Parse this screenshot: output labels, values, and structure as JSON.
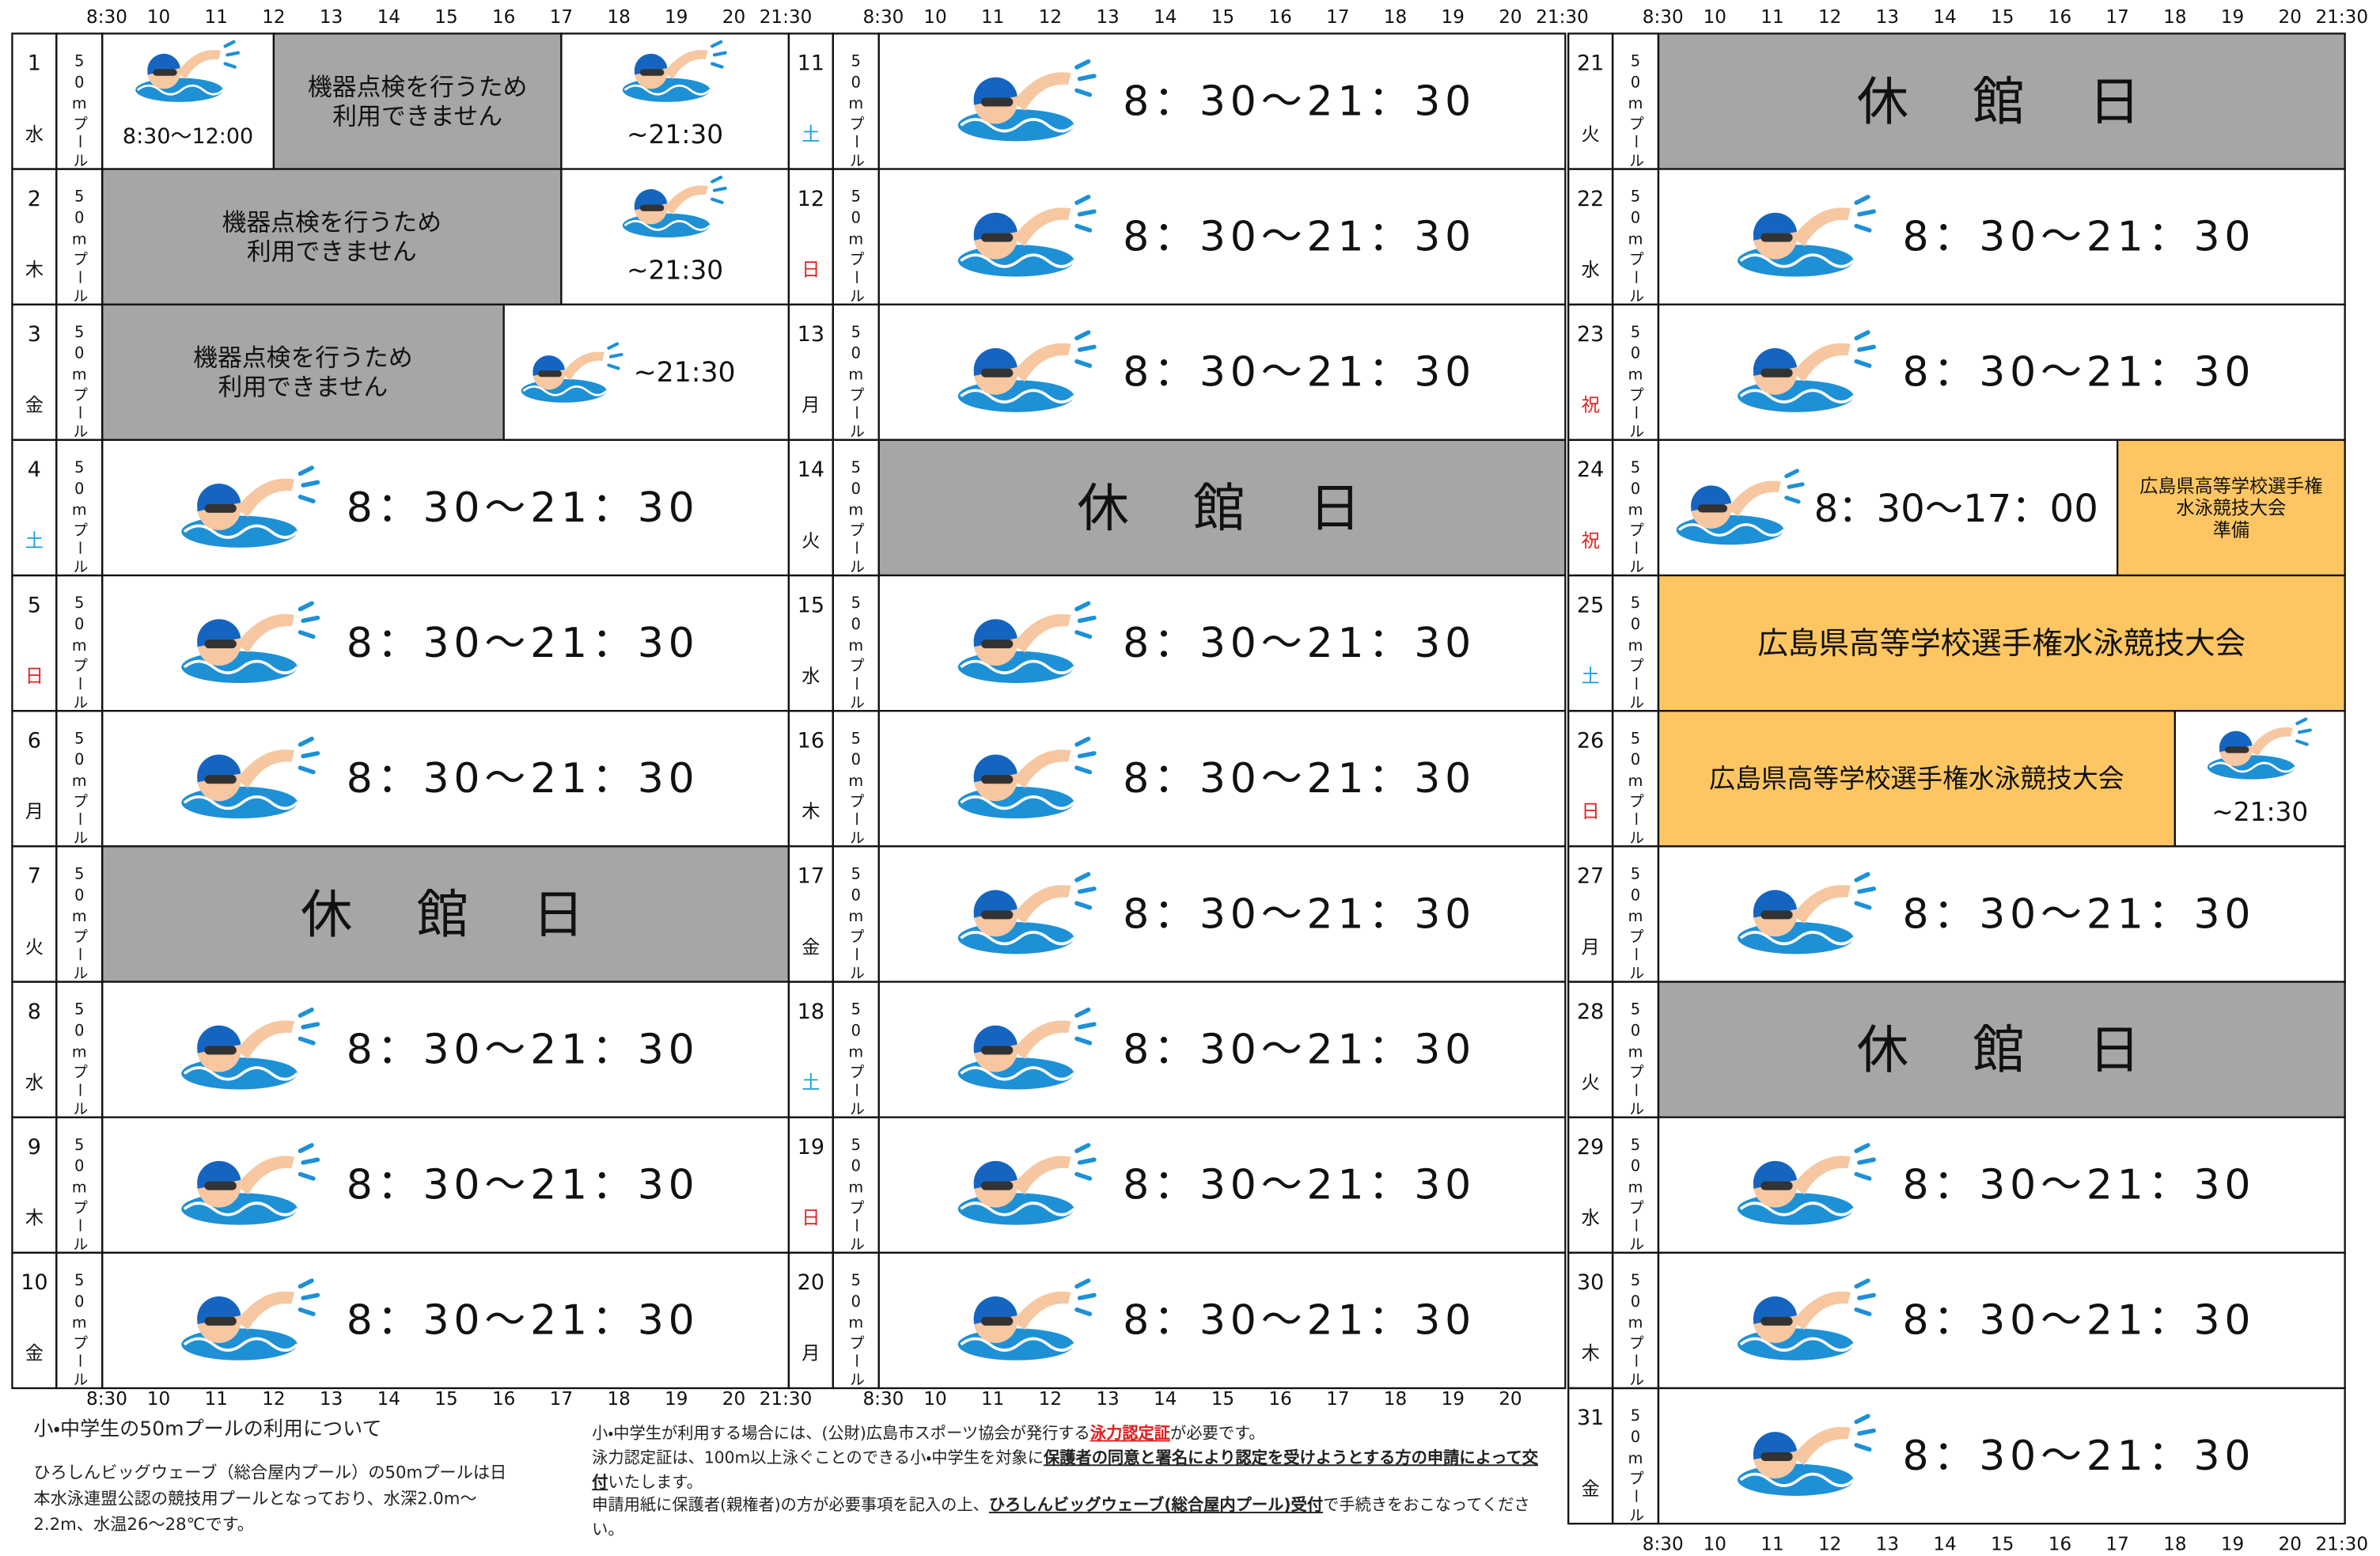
{
  "time_labels": [
    "8:30",
    "10",
    "11",
    "12",
    "13",
    "14",
    "15",
    "16",
    "17",
    "18",
    "19",
    "20",
    "21:30"
  ],
  "pool_label": "50mプール",
  "colors": {
    "open": "#ffffff",
    "closed": "#a6a6a6",
    "event": "#fdc662"
  },
  "days": [
    {
      "day": "1",
      "weekday": "水",
      "segments": [
        {
          "kind": "open",
          "start": 8.5,
          "end": 12,
          "label": "8:30～12:00"
        },
        {
          "kind": "closed",
          "start": 12,
          "end": 17,
          "lines": [
            "機器点検を行うため",
            "利用できません"
          ]
        },
        {
          "kind": "open",
          "start": 17,
          "end": 21.5,
          "label": "~21:30"
        }
      ]
    },
    {
      "day": "2",
      "weekday": "木",
      "segments": [
        {
          "kind": "closed",
          "start": 8.5,
          "end": 17,
          "lines": [
            "機器点検を行うため",
            "利用できません"
          ]
        },
        {
          "kind": "open",
          "start": 17,
          "end": 21.5,
          "label": "~21:30"
        }
      ]
    },
    {
      "day": "3",
      "weekday": "金",
      "segments": [
        {
          "kind": "closed",
          "start": 8.5,
          "end": 16,
          "lines": [
            "機器点検を行うため",
            "利用できません"
          ]
        },
        {
          "kind": "open",
          "start": 16,
          "end": 21.5,
          "label": "~21:30"
        }
      ]
    },
    {
      "day": "4",
      "weekday": "土",
      "color": "#1aa0d8",
      "segments": [
        {
          "kind": "open",
          "start": 8.5,
          "end": 21.5,
          "label": "8：30～21：30"
        }
      ]
    },
    {
      "day": "5",
      "weekday": "日",
      "color": "#e02020",
      "segments": [
        {
          "kind": "open",
          "start": 8.5,
          "end": 21.5,
          "label": "8：30～21：30"
        }
      ]
    },
    {
      "day": "6",
      "weekday": "月",
      "segments": [
        {
          "kind": "open",
          "start": 8.5,
          "end": 21.5,
          "label": "8：30～21：30"
        }
      ]
    },
    {
      "day": "7",
      "weekday": "火",
      "segments": [
        {
          "kind": "closed",
          "start": 8.5,
          "end": 21.5,
          "lines": [
            "休　館　日"
          ]
        }
      ]
    },
    {
      "day": "8",
      "weekday": "水",
      "segments": [
        {
          "kind": "open",
          "start": 8.5,
          "end": 21.5,
          "label": "8：30～21：30"
        }
      ]
    },
    {
      "day": "9",
      "weekday": "木",
      "segments": [
        {
          "kind": "open",
          "start": 8.5,
          "end": 21.5,
          "label": "8：30～21：30"
        }
      ]
    },
    {
      "day": "10",
      "weekday": "金",
      "segments": [
        {
          "kind": "open",
          "start": 8.5,
          "end": 21.5,
          "label": "8：30～21：30"
        }
      ]
    },
    {
      "day": "11",
      "weekday": "土",
      "color": "#1aa0d8",
      "segments": [
        {
          "kind": "open",
          "start": 8.5,
          "end": 21.5,
          "label": "8：30～21：30"
        }
      ]
    },
    {
      "day": "12",
      "weekday": "日",
      "color": "#e02020",
      "segments": [
        {
          "kind": "open",
          "start": 8.5,
          "end": 21.5,
          "label": "8：30～21：30"
        }
      ]
    },
    {
      "day": "13",
      "weekday": "月",
      "segments": [
        {
          "kind": "open",
          "start": 8.5,
          "end": 21.5,
          "label": "8：30～21：30"
        }
      ]
    },
    {
      "day": "14",
      "weekday": "火",
      "segments": [
        {
          "kind": "closed",
          "start": 8.5,
          "end": 21.5,
          "lines": [
            "休　館　日"
          ]
        }
      ]
    },
    {
      "day": "15",
      "weekday": "水",
      "segments": [
        {
          "kind": "open",
          "start": 8.5,
          "end": 21.5,
          "label": "8：30～21：30"
        }
      ]
    },
    {
      "day": "16",
      "weekday": "木",
      "segments": [
        {
          "kind": "open",
          "start": 8.5,
          "end": 21.5,
          "label": "8：30～21：30"
        }
      ]
    },
    {
      "day": "17",
      "weekday": "金",
      "segments": [
        {
          "kind": "open",
          "start": 8.5,
          "end": 21.5,
          "label": "8：30～21：30"
        }
      ]
    },
    {
      "day": "18",
      "weekday": "土",
      "color": "#1aa0d8",
      "segments": [
        {
          "kind": "open",
          "start": 8.5,
          "end": 21.5,
          "label": "8：30～21：30"
        }
      ]
    },
    {
      "day": "19",
      "weekday": "日",
      "color": "#e02020",
      "segments": [
        {
          "kind": "open",
          "start": 8.5,
          "end": 21.5,
          "label": "8：30～21：30"
        }
      ]
    },
    {
      "day": "20",
      "weekday": "月",
      "segments": [
        {
          "kind": "open",
          "start": 8.5,
          "end": 21.5,
          "label": "8：30～21：30"
        }
      ]
    },
    {
      "day": "21",
      "weekday": "火",
      "segments": [
        {
          "kind": "closed",
          "start": 8.5,
          "end": 21.5,
          "lines": [
            "休　館　日"
          ]
        }
      ]
    },
    {
      "day": "22",
      "weekday": "水",
      "segments": [
        {
          "kind": "open",
          "start": 8.5,
          "end": 21.5,
          "label": "8：30～21：30"
        }
      ]
    },
    {
      "day": "23",
      "weekday": "祝",
      "color": "#e02020",
      "segments": [
        {
          "kind": "open",
          "start": 8.5,
          "end": 21.5,
          "label": "8：30～21：30"
        }
      ]
    },
    {
      "day": "24",
      "weekday": "祝",
      "color": "#e02020",
      "segments": [
        {
          "kind": "open",
          "start": 8.5,
          "end": 17,
          "label": "8：30～17：00"
        },
        {
          "kind": "event",
          "start": 17,
          "end": 21.5,
          "lines": [
            "広島県高等学校選手権",
            "水泳競技大会",
            "準備"
          ]
        }
      ]
    },
    {
      "day": "25",
      "weekday": "土",
      "color": "#1aa0d8",
      "segments": [
        {
          "kind": "event",
          "start": 8.5,
          "end": 21.5,
          "lines": [
            "広島県高等学校選手権水泳競技大会"
          ]
        }
      ]
    },
    {
      "day": "26",
      "weekday": "日",
      "color": "#e02020",
      "segments": [
        {
          "kind": "event",
          "start": 8.5,
          "end": 18,
          "lines": [
            "広島県高等学校選手権水泳競技大会"
          ]
        },
        {
          "kind": "open",
          "start": 18,
          "end": 21.5,
          "label": "~21:30"
        }
      ]
    },
    {
      "day": "27",
      "weekday": "月",
      "segments": [
        {
          "kind": "open",
          "start": 8.5,
          "end": 21.5,
          "label": "8：30～21：30"
        }
      ]
    },
    {
      "day": "28",
      "weekday": "火",
      "segments": [
        {
          "kind": "closed",
          "start": 8.5,
          "end": 21.5,
          "lines": [
            "休　館　日"
          ]
        }
      ]
    },
    {
      "day": "29",
      "weekday": "水",
      "segments": [
        {
          "kind": "open",
          "start": 8.5,
          "end": 21.5,
          "label": "8：30～21：30"
        }
      ]
    },
    {
      "day": "30",
      "weekday": "木",
      "segments": [
        {
          "kind": "open",
          "start": 8.5,
          "end": 21.5,
          "label": "8：30～21：30"
        }
      ]
    },
    {
      "day": "31",
      "weekday": "金",
      "segments": [
        {
          "kind": "open",
          "start": 8.5,
          "end": 21.5,
          "label": "8：30～21：30"
        }
      ]
    }
  ],
  "notes": {
    "title": "小・中学生の50mプールの利用について",
    "description": "ひろしんビッグウェーブ（総合屋内プール）の50mプールは日本水泳連盟公認の競技用プールとなっており、水深2.0m～2.2m、水温26～28℃です。",
    "paragraphs": [
      [
        {
          "text": "小・中学生が利用する場合には、(公財)広島市スポーツ協会が発行する"
        },
        {
          "text": "泳力認定証",
          "style": "red-underline"
        },
        {
          "text": "が必要です。"
        }
      ],
      [
        {
          "text": "泳力認定証は、100m以上泳ぐことのできる小・中学生を対象に"
        },
        {
          "text": "保護者の同意と署名により認定を受けようとする方の申請によって交付",
          "style": "underline"
        },
        {
          "text": "いたします。"
        }
      ],
      [
        {
          "text": "申請用紙に保護者(親権者)の方が必要事項を記入の上、"
        },
        {
          "text": "ひろしんビッグウェーブ(総合屋内プール)受付",
          "style": "underline"
        },
        {
          "text": "で手続きをおこなってください。"
        }
      ]
    ]
  }
}
